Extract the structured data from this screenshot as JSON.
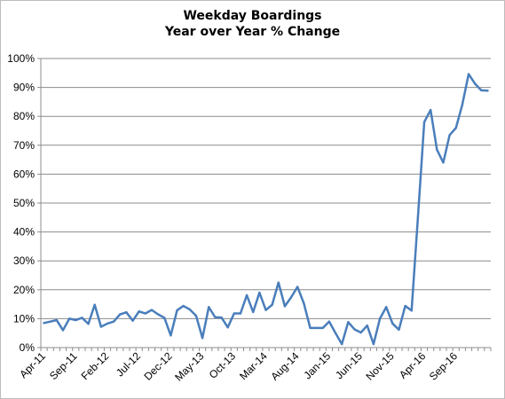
{
  "chart_data": {
    "type": "line",
    "title": "Weekday Boardings",
    "subtitle": "Year over Year % Change",
    "xlabel": "",
    "ylabel": "",
    "ylim": [
      0,
      100
    ],
    "y_ticks": [
      "0%",
      "10%",
      "20%",
      "30%",
      "40%",
      "50%",
      "60%",
      "70%",
      "80%",
      "90%",
      "100%"
    ],
    "x_tick_labels": [
      "Apr-11",
      "Sep-11",
      "Feb-12",
      "Jul-12",
      "Dec-12",
      "May-13",
      "Oct-13",
      "Mar-14",
      "Aug-14",
      "Jan-15",
      "Jun-15",
      "Nov-15",
      "Apr-16",
      "Sep-16"
    ],
    "grid": "horizontal",
    "legend": "none",
    "line_color": "#4a7ebb",
    "x": [
      "Apr-11",
      "May-11",
      "Jun-11",
      "Jul-11",
      "Aug-11",
      "Sep-11",
      "Oct-11",
      "Nov-11",
      "Dec-11",
      "Jan-12",
      "Feb-12",
      "Mar-12",
      "Apr-12",
      "May-12",
      "Jun-12",
      "Jul-12",
      "Aug-12",
      "Sep-12",
      "Oct-12",
      "Nov-12",
      "Dec-12",
      "Jan-13",
      "Feb-13",
      "Mar-13",
      "Apr-13",
      "May-13",
      "Jun-13",
      "Jul-13",
      "Aug-13",
      "Sep-13",
      "Oct-13",
      "Nov-13",
      "Dec-13",
      "Jan-14",
      "Feb-14",
      "Mar-14",
      "Apr-14",
      "May-14",
      "Jun-14",
      "Jul-14",
      "Aug-14",
      "Sep-14",
      "Oct-14",
      "Nov-14",
      "Dec-14",
      "Jan-15",
      "Feb-15",
      "Mar-15",
      "Apr-15",
      "May-15",
      "Jun-15",
      "Jul-15",
      "Aug-15",
      "Sep-15",
      "Oct-15",
      "Nov-15",
      "Dec-15",
      "Jan-16",
      "Feb-16",
      "Mar-16",
      "Apr-16",
      "May-16",
      "Jun-16",
      "Jul-16",
      "Aug-16",
      "Sep-16",
      "Oct-16",
      "Nov-16",
      "Dec-16",
      "Jan-17",
      "Feb-17"
    ],
    "values": [
      8.5,
      9.0,
      9.5,
      6.0,
      10.0,
      9.5,
      10.3,
      8.2,
      14.8,
      7.2,
      8.3,
      9.0,
      11.5,
      12.2,
      9.3,
      12.5,
      11.8,
      13.0,
      11.5,
      10.3,
      4.2,
      12.9,
      14.4,
      13.2,
      11.0,
      3.3,
      14.0,
      10.5,
      10.4,
      7.0,
      11.8,
      11.8,
      18.1,
      12.3,
      19.0,
      13.0,
      14.8,
      22.5,
      14.3,
      17.4,
      21.0,
      15.3,
      6.8,
      6.8,
      6.8,
      9.0,
      5.0,
      1.2,
      8.8,
      6.3,
      5.2,
      7.6,
      1.2,
      10.0,
      14.0,
      8.3,
      6.2,
      14.4,
      12.8,
      45.0,
      78.0,
      82.2,
      68.5,
      64.0,
      73.5,
      76.0,
      84.0,
      94.6,
      91.3,
      89.0,
      88.9
    ]
  }
}
